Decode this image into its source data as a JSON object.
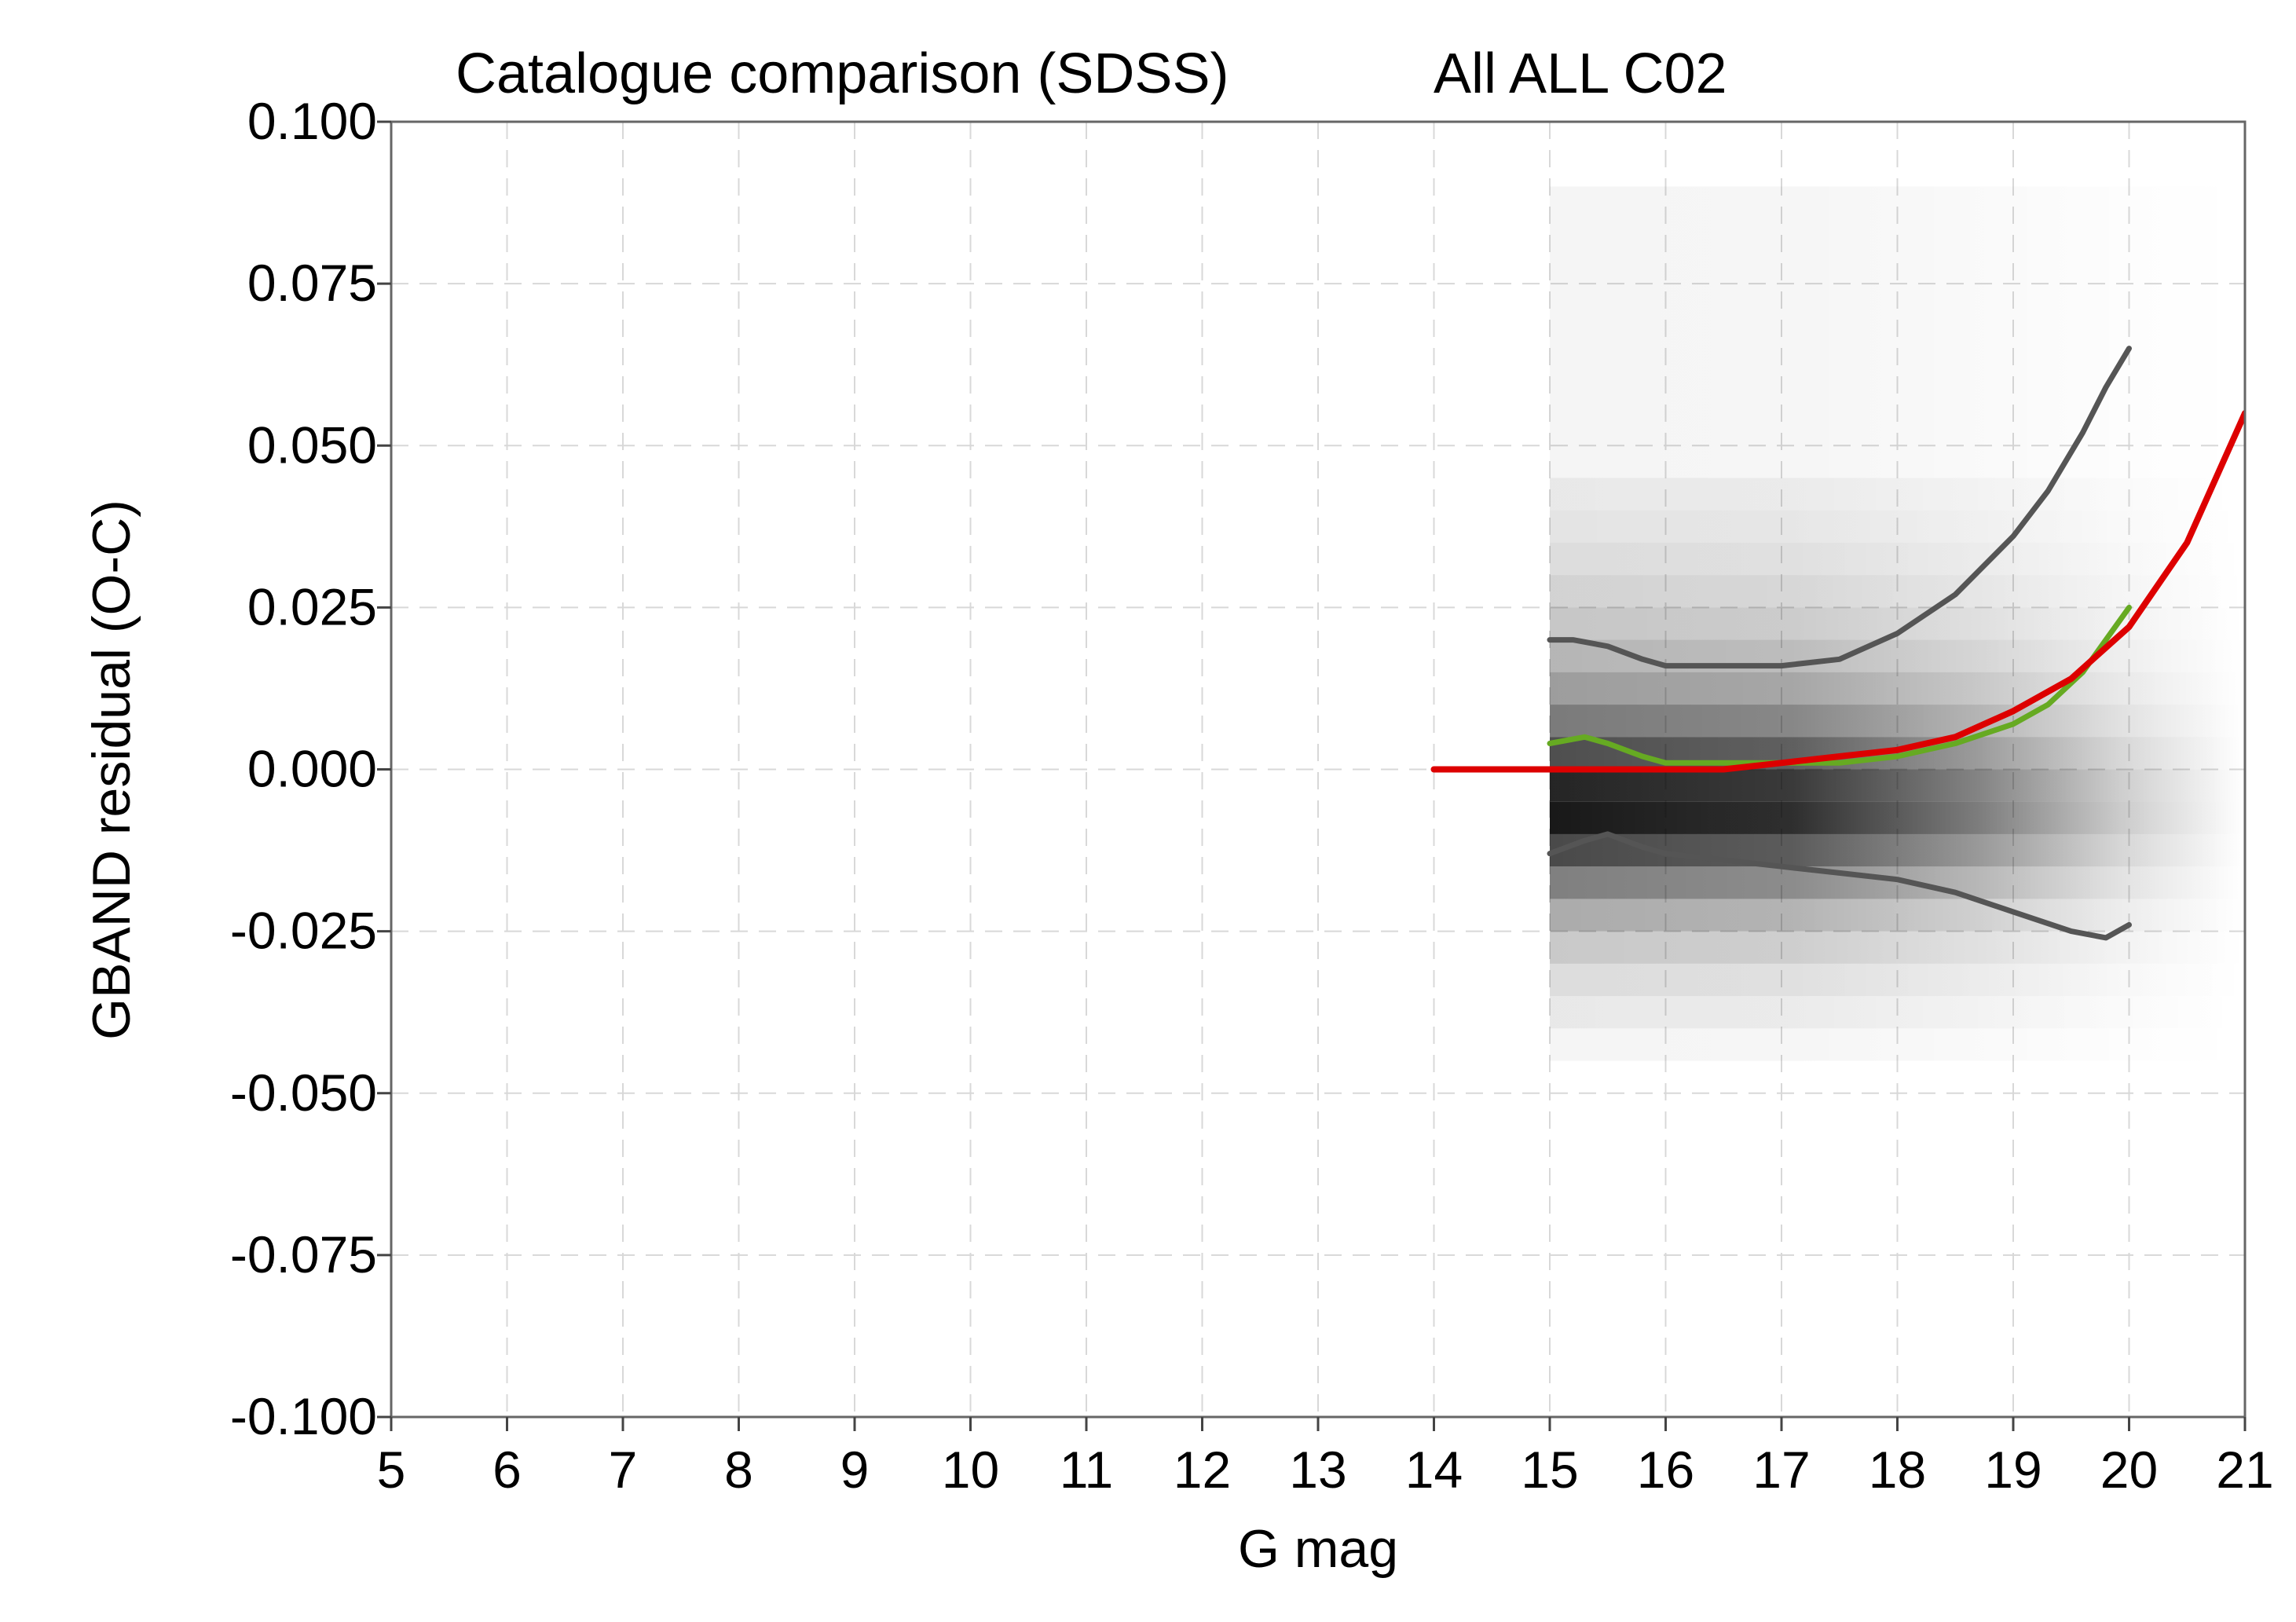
{
  "chart_data": {
    "type": "line",
    "title": "Catalogue comparison (SDSS)",
    "subtitle": "All ALL C02",
    "xlabel": "G mag",
    "ylabel": "GBAND residual (O-C)",
    "xlim": [
      5,
      21
    ],
    "ylim": [
      -0.1,
      0.1
    ],
    "xticks": [
      "5",
      "6",
      "7",
      "8",
      "9",
      "10",
      "11",
      "12",
      "13",
      "14",
      "15",
      "16",
      "17",
      "18",
      "19",
      "20",
      "21"
    ],
    "yticks": [
      "-0.100",
      "-0.075",
      "-0.050",
      "-0.025",
      "0.000",
      "0.025",
      "0.050",
      "0.075",
      "0.100"
    ],
    "grid": true,
    "density_background": {
      "description": "grayscale 2D histogram of residuals",
      "x_range": [
        15,
        21
      ],
      "color": "#000000"
    },
    "series": [
      {
        "color": "#555555",
        "role": "upper",
        "x": [
          15.0,
          15.2,
          15.5,
          15.8,
          16.0,
          16.5,
          17.0,
          17.5,
          18.0,
          18.5,
          19.0,
          19.3,
          19.6,
          19.8,
          20.0
        ],
        "y": [
          0.02,
          0.02,
          0.019,
          0.017,
          0.016,
          0.016,
          0.016,
          0.017,
          0.021,
          0.027,
          0.036,
          0.043,
          0.052,
          0.059,
          0.065
        ]
      },
      {
        "color": "#555555",
        "role": "lower",
        "x": [
          15.0,
          15.3,
          15.5,
          15.8,
          16.0,
          16.5,
          17.0,
          17.5,
          18.0,
          18.5,
          19.0,
          19.5,
          19.8,
          20.0
        ],
        "y": [
          -0.013,
          -0.011,
          -0.01,
          -0.012,
          -0.013,
          -0.014,
          -0.015,
          -0.016,
          -0.017,
          -0.019,
          -0.022,
          -0.025,
          -0.026,
          -0.024
        ]
      },
      {
        "color": "#66aa22",
        "role": "median",
        "x": [
          15.0,
          15.3,
          15.5,
          15.8,
          16.0,
          16.5,
          17.0,
          17.5,
          18.0,
          18.5,
          19.0,
          19.3,
          19.6,
          19.8,
          20.0
        ],
        "y": [
          0.004,
          0.005,
          0.004,
          0.002,
          0.001,
          0.001,
          0.001,
          0.001,
          0.002,
          0.004,
          0.007,
          0.01,
          0.015,
          0.02,
          0.025
        ]
      },
      {
        "color": "#dd0000",
        "role": "fit",
        "x": [
          14.0,
          14.5,
          15.0,
          15.5,
          16.0,
          16.5,
          17.0,
          17.5,
          18.0,
          18.5,
          19.0,
          19.5,
          20.0,
          20.5,
          21.0
        ],
        "y": [
          0.0,
          0.0,
          0.0,
          0.0,
          0.0,
          0.0,
          0.001,
          0.002,
          0.003,
          0.005,
          0.009,
          0.014,
          0.022,
          0.035,
          0.055
        ]
      }
    ]
  }
}
